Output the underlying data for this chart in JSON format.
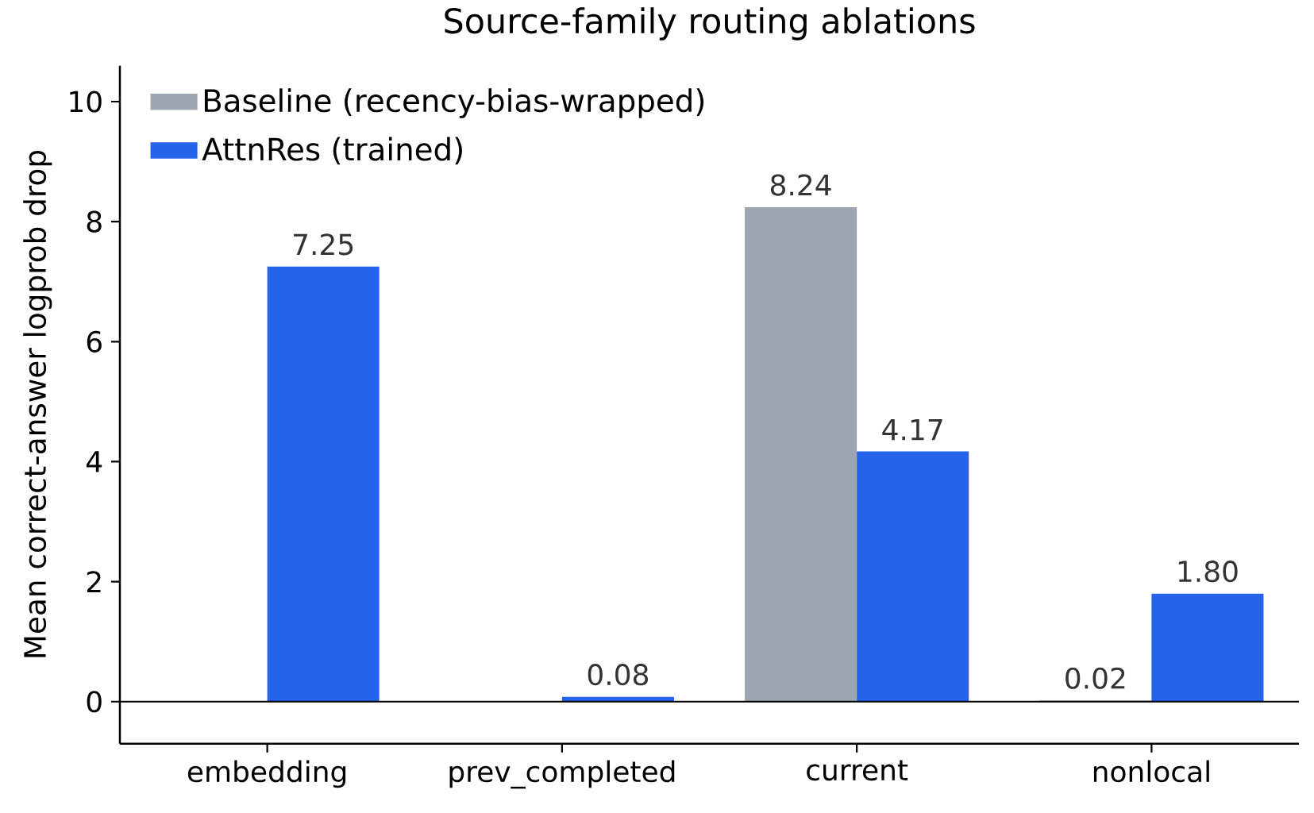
{
  "chart_data": {
    "type": "bar",
    "title": "Source-family routing ablations",
    "ylabel": "Mean correct-answer logprob drop",
    "categories": [
      "embedding",
      "prev_completed",
      "current",
      "nonlocal"
    ],
    "series": [
      {
        "name": "Baseline (recency-bias-wrapped)",
        "color": "#9ca6b2",
        "values": [
          null,
          null,
          8.24,
          0.02
        ],
        "value_labels": [
          null,
          null,
          "8.24",
          "0.02"
        ]
      },
      {
        "name": "AttnRes (trained)",
        "color": "#2563eb",
        "values": [
          7.25,
          0.08,
          4.17,
          1.8
        ],
        "value_labels": [
          "7.25",
          "0.08",
          "4.17",
          "1.80"
        ]
      }
    ],
    "ylim": [
      -0.7,
      10.6
    ],
    "yticks": [
      0,
      2,
      4,
      6,
      8,
      10
    ],
    "ref_lines": [
      {
        "axis": "y",
        "value": 0,
        "color": "#000000"
      }
    ],
    "legend": "top left",
    "grid": false
  }
}
